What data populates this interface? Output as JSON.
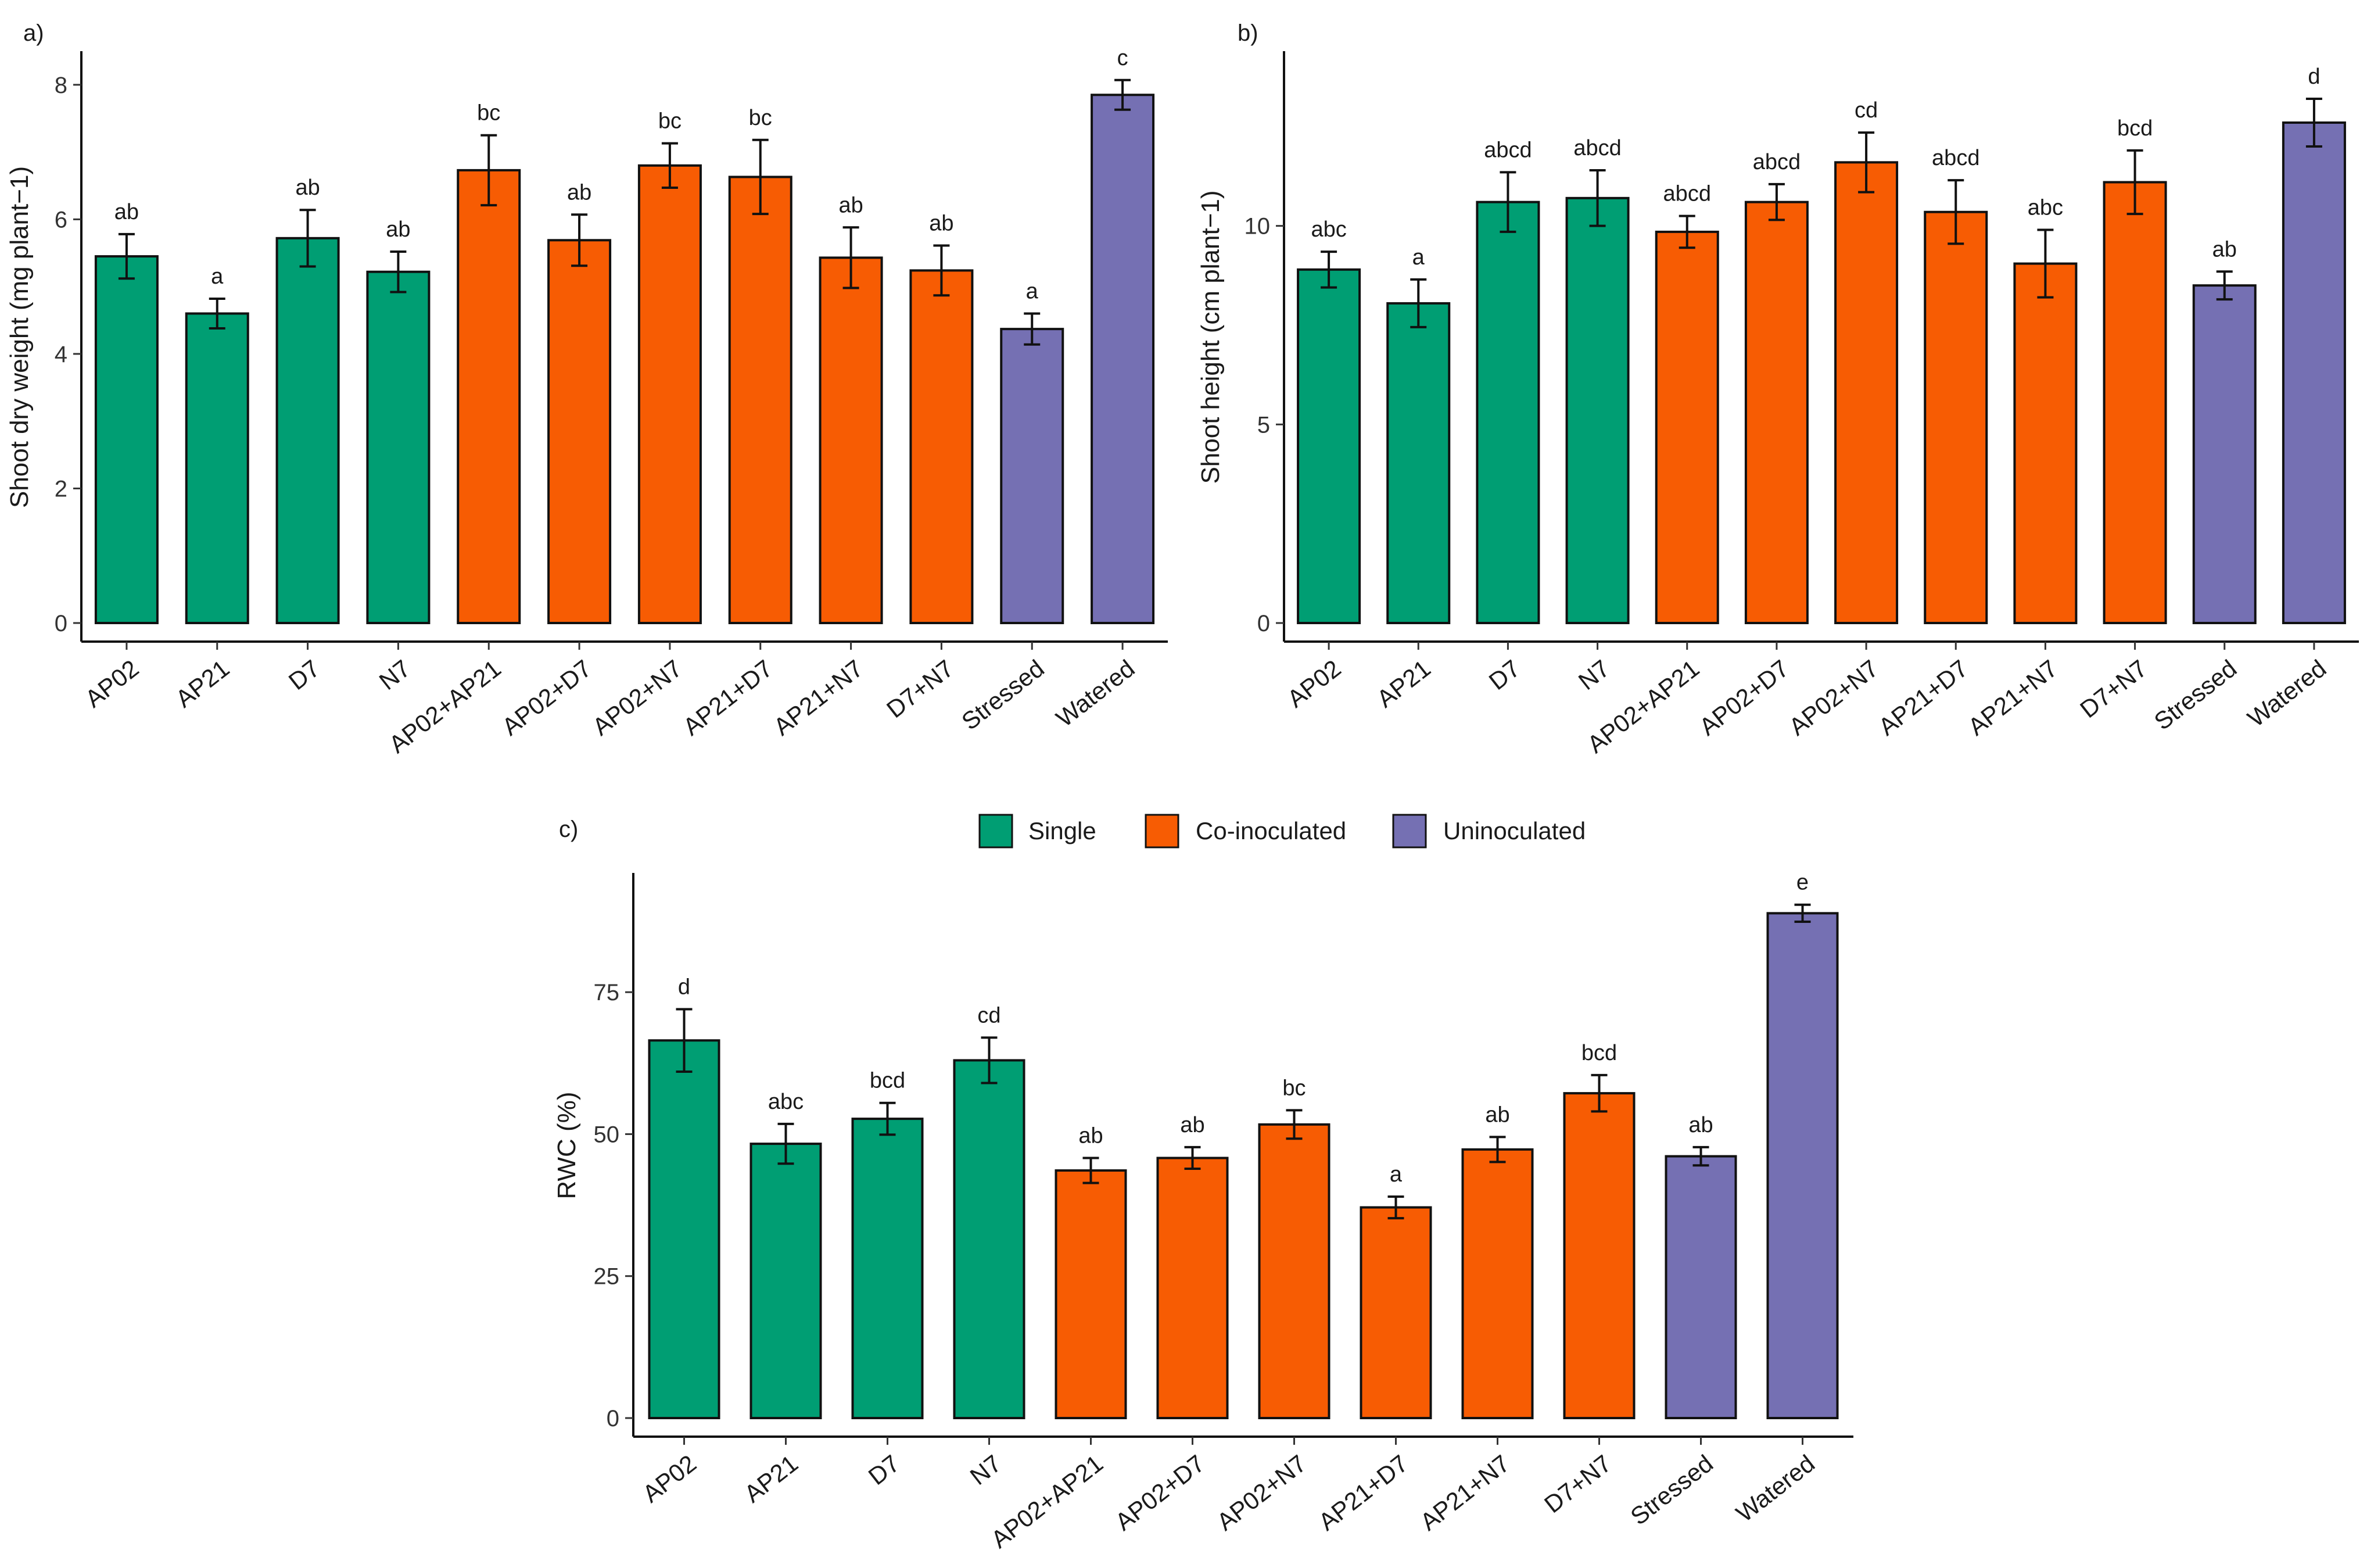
{
  "chart_data": [
    {
      "type": "bar",
      "panel_label": "a)",
      "ylabel": "Shoot dry weight (mg plant−1)",
      "xlabel": "",
      "ylim": [
        0,
        8.5
      ],
      "yticks": [
        0,
        2,
        4,
        6,
        8
      ],
      "categories": [
        "AP02",
        "AP21",
        "D7",
        "N7",
        "AP02+AP21",
        "AP02+D7",
        "AP02+N7",
        "AP21+D7",
        "AP21+N7",
        "D7+N7",
        "Stressed",
        "Watered"
      ],
      "groups": [
        "Single",
        "Single",
        "Single",
        "Single",
        "Co-inoculated",
        "Co-inoculated",
        "Co-inoculated",
        "Co-inoculated",
        "Co-inoculated",
        "Co-inoculated",
        "Uninoculated",
        "Uninoculated"
      ],
      "values": [
        5.45,
        4.6,
        5.72,
        5.22,
        6.73,
        5.69,
        6.8,
        6.63,
        5.43,
        5.24,
        4.37,
        7.85
      ],
      "errors": [
        0.33,
        0.22,
        0.42,
        0.3,
        0.52,
        0.38,
        0.33,
        0.55,
        0.45,
        0.37,
        0.23,
        0.22
      ],
      "significance": [
        "ab",
        "a",
        "ab",
        "ab",
        "bc",
        "ab",
        "bc",
        "bc",
        "ab",
        "ab",
        "a",
        "c"
      ]
    },
    {
      "type": "bar",
      "panel_label": "b)",
      "ylabel": "Shoot height (cm plant−1)",
      "xlabel": "",
      "ylim": [
        0,
        14.4
      ],
      "yticks": [
        0,
        5,
        10
      ],
      "categories": [
        "AP02",
        "AP21",
        "D7",
        "N7",
        "AP02+AP21",
        "AP02+D7",
        "AP02+N7",
        "AP21+D7",
        "AP21+N7",
        "D7+N7",
        "Stressed",
        "Watered"
      ],
      "groups": [
        "Single",
        "Single",
        "Single",
        "Single",
        "Co-inoculated",
        "Co-inoculated",
        "Co-inoculated",
        "Co-inoculated",
        "Co-inoculated",
        "Co-inoculated",
        "Uninoculated",
        "Uninoculated"
      ],
      "values": [
        8.9,
        8.05,
        10.6,
        10.7,
        9.85,
        10.6,
        11.6,
        10.35,
        9.05,
        11.1,
        8.5,
        12.6
      ],
      "errors": [
        0.45,
        0.6,
        0.75,
        0.7,
        0.4,
        0.45,
        0.75,
        0.8,
        0.85,
        0.8,
        0.35,
        0.6
      ],
      "significance": [
        "abc",
        "a",
        "abcd",
        "abcd",
        "abcd",
        "abcd",
        "cd",
        "abcd",
        "abc",
        "bcd",
        "ab",
        "d"
      ]
    },
    {
      "type": "bar",
      "panel_label": "c)",
      "ylabel": "RWC (%)",
      "xlabel": "",
      "ylim": [
        0,
        96
      ],
      "yticks": [
        0,
        25,
        50,
        75
      ],
      "categories": [
        "AP02",
        "AP21",
        "D7",
        "N7",
        "AP02+AP21",
        "AP02+D7",
        "AP02+N7",
        "AP21+D7",
        "AP21+N7",
        "D7+N7",
        "Stressed",
        "Watered"
      ],
      "groups": [
        "Single",
        "Single",
        "Single",
        "Single",
        "Co-inoculated",
        "Co-inoculated",
        "Co-inoculated",
        "Co-inoculated",
        "Co-inoculated",
        "Co-inoculated",
        "Uninoculated",
        "Uninoculated"
      ],
      "values": [
        66.5,
        48.3,
        52.7,
        63,
        43.6,
        45.8,
        51.7,
        37.1,
        47.3,
        57.2,
        46.1,
        88.9
      ],
      "errors": [
        5.5,
        3.5,
        2.8,
        4,
        2.2,
        1.9,
        2.5,
        1.9,
        2.2,
        3.2,
        1.6,
        1.5
      ],
      "significance": [
        "d",
        "abc",
        "bcd",
        "cd",
        "ab",
        "ab",
        "bc",
        "a",
        "ab",
        "bcd",
        "ab",
        "e"
      ]
    }
  ],
  "legend": {
    "items": [
      {
        "label": "Single",
        "color": "#009e73"
      },
      {
        "label": "Co-inoculated",
        "color": "#f75c03"
      },
      {
        "label": "Uninoculated",
        "color": "#7570b3"
      }
    ]
  },
  "colors": {
    "Single": "#009e73",
    "Co-inoculated": "#f75c03",
    "Uninoculated": "#7570b3"
  }
}
